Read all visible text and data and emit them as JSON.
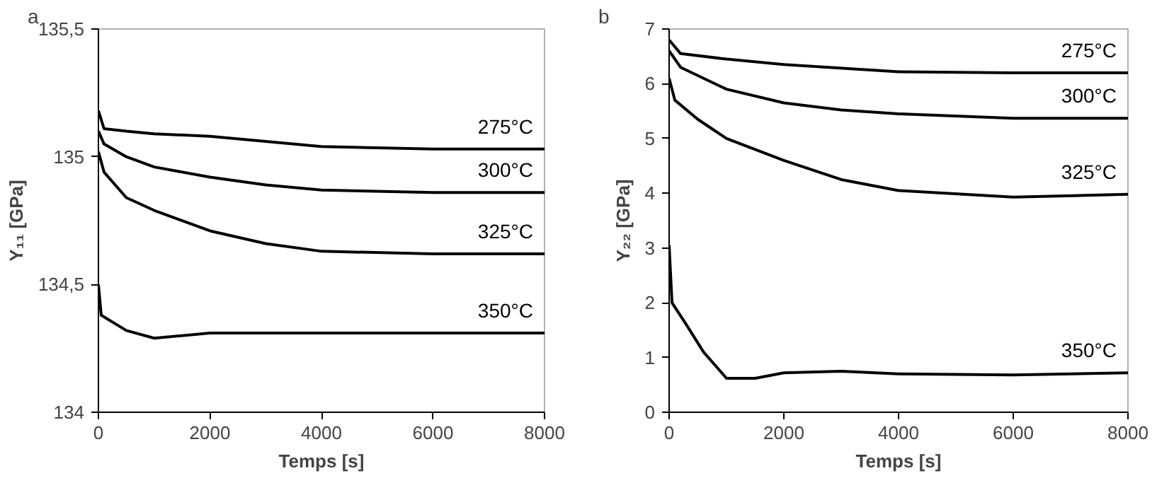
{
  "chart_data": [
    {
      "type": "line",
      "xlabel": "Temps [s]",
      "ylabel": "Y₁₁ [GPa]",
      "annotations": [
        "a"
      ],
      "xlim": [
        0,
        8000
      ],
      "xticks": [
        0,
        2000,
        4000,
        6000,
        8000
      ],
      "ylim": [
        134,
        135.5
      ],
      "yticks": [
        134,
        {
          "value": 134.5,
          "label": "134,5"
        },
        135,
        {
          "value": 135.5,
          "label": "135,5"
        }
      ],
      "grid": false,
      "marker": "none",
      "line_style": "solid",
      "series": [
        {
          "name": "275°C",
          "color": "#000000",
          "x": [
            0,
            100,
            500,
            1000,
            2000,
            3000,
            4000,
            6000,
            8000
          ],
          "values": [
            135.18,
            135.11,
            135.1,
            135.09,
            135.08,
            135.06,
            135.04,
            135.03,
            135.03
          ]
        },
        {
          "name": "300°C",
          "color": "#000000",
          "x": [
            0,
            100,
            500,
            1000,
            2000,
            3000,
            4000,
            6000,
            8000
          ],
          "values": [
            135.1,
            135.05,
            135.0,
            134.96,
            134.92,
            134.89,
            134.87,
            134.86,
            134.86
          ]
        },
        {
          "name": "325°C",
          "color": "#000000",
          "x": [
            0,
            100,
            500,
            1000,
            2000,
            3000,
            4000,
            6000,
            8000
          ],
          "values": [
            135.02,
            134.94,
            134.84,
            134.79,
            134.71,
            134.66,
            134.63,
            134.62,
            134.62
          ]
        },
        {
          "name": "350°C",
          "color": "#000000",
          "x": [
            0,
            50,
            500,
            1000,
            2000,
            4000,
            6000,
            8000
          ],
          "values": [
            134.5,
            134.38,
            134.32,
            134.29,
            134.31,
            134.31,
            134.31,
            134.31
          ]
        }
      ]
    },
    {
      "type": "line",
      "xlabel": "Temps [s]",
      "ylabel": "Y₂₂ [GPa]",
      "annotations": [
        "b"
      ],
      "xlim": [
        0,
        8000
      ],
      "xticks": [
        0,
        2000,
        4000,
        6000,
        8000
      ],
      "ylim": [
        0,
        7
      ],
      "yticks": [
        0,
        1,
        2,
        3,
        4,
        5,
        6,
        7
      ],
      "grid": false,
      "marker": "none",
      "line_style": "solid",
      "series": [
        {
          "name": "275°C",
          "color": "#000000",
          "x": [
            0,
            200,
            1000,
            2000,
            4000,
            6000,
            8000
          ],
          "values": [
            6.8,
            6.55,
            6.45,
            6.35,
            6.22,
            6.2,
            6.2
          ]
        },
        {
          "name": "300°C",
          "color": "#000000",
          "x": [
            0,
            200,
            1000,
            2000,
            3000,
            4000,
            6000,
            8000
          ],
          "values": [
            6.6,
            6.3,
            5.9,
            5.65,
            5.52,
            5.45,
            5.37,
            5.37
          ]
        },
        {
          "name": "325°C",
          "color": "#000000",
          "x": [
            0,
            100,
            500,
            1000,
            2000,
            3000,
            4000,
            6000,
            8000
          ],
          "values": [
            6.1,
            5.7,
            5.35,
            5.0,
            4.6,
            4.25,
            4.05,
            3.93,
            3.98
          ]
        },
        {
          "name": "350°C",
          "color": "#000000",
          "x": [
            0,
            50,
            300,
            600,
            1000,
            1500,
            2000,
            3000,
            4000,
            6000,
            8000
          ],
          "values": [
            3.05,
            2.0,
            1.6,
            1.1,
            0.62,
            0.62,
            0.72,
            0.75,
            0.7,
            0.68,
            0.72
          ]
        }
      ]
    }
  ]
}
